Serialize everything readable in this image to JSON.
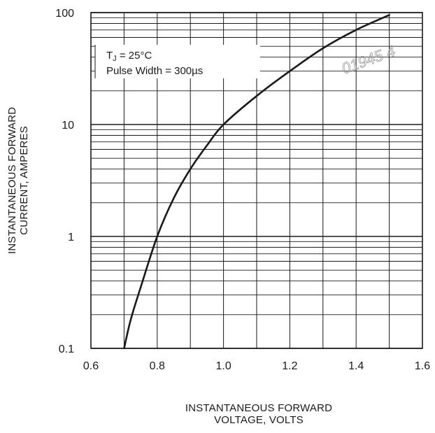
{
  "chart_data": {
    "type": "line",
    "title": "",
    "x": [
      0.7,
      0.72,
      0.75,
      0.8,
      0.85,
      0.9,
      0.95,
      1.0,
      1.1,
      1.2,
      1.3,
      1.4,
      1.5
    ],
    "series": [
      {
        "values": [
          0.1,
          0.18,
          0.35,
          1.0,
          2.2,
          4.0,
          6.5,
          10,
          18,
          30,
          48,
          70,
          95
        ]
      }
    ],
    "xlim": [
      0.6,
      1.6
    ],
    "ylim": [
      0.1,
      100
    ],
    "yscale": "log",
    "grid": true,
    "x_ticks": [
      {
        "value": 0.6,
        "label": "0.6"
      },
      {
        "value": 0.8,
        "label": "0.8"
      },
      {
        "value": 1.0,
        "label": "1.0"
      },
      {
        "value": 1.2,
        "label": "1.2"
      },
      {
        "value": 1.4,
        "label": "1.4"
      },
      {
        "value": 1.6,
        "label": "1.6"
      }
    ],
    "y_ticks": [
      {
        "value": 0.1,
        "label": "0.1"
      },
      {
        "value": 1,
        "label": "1"
      },
      {
        "value": 10,
        "label": "10"
      },
      {
        "value": 100,
        "label": "100"
      }
    ],
    "xlabel_lines": [
      "INSTANTANEOUS  FORWARD",
      "VOLTAGE,  VOLTS"
    ],
    "ylabel_lines": [
      "INSTANTANEOUS  FORWARD",
      "CURRENT,  AMPERES"
    ],
    "annotation": {
      "line1_main": "T",
      "line1_sub": "J",
      "line1_rest": " = 25°C",
      "line2": "Pulse Width = 300µs"
    },
    "watermark": "01945 4",
    "colors": {
      "curve": "#1a1a1a",
      "grid": "#1a1a1a",
      "text": "#1a1a1a"
    }
  }
}
